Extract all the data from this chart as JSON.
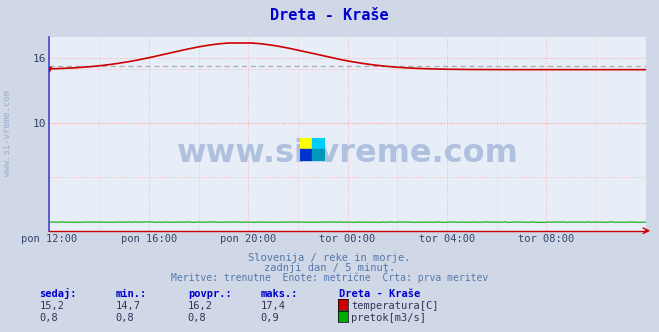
{
  "title": "Dreta - Kraše",
  "title_color": "#0000cc",
  "bg_color": "#d0d8e8",
  "plot_bg_color": "#e8eef8",
  "grid_color": "#ffaaaa",
  "spine_color_left": "#4444cc",
  "spine_color_bottom": "#cc0000",
  "x_labels": [
    "pon 12:00",
    "pon 16:00",
    "pon 20:00",
    "tor 00:00",
    "tor 04:00",
    "tor 08:00"
  ],
  "x_ticks_norm": [
    0.0,
    0.1667,
    0.3333,
    0.5,
    0.6667,
    0.8333
  ],
  "y_min": 0,
  "y_max": 18,
  "y_ticks": [
    10,
    16
  ],
  "temp_color": "#cc0000",
  "flow_color": "#00aa00",
  "avg_line_color": "#aaaaaa",
  "avg_value": 15.3,
  "watermark_text": "www.si-vreme.com",
  "watermark_color": "#aabbdd",
  "side_text": "www.si-vreme.com",
  "subtitle1": "Slovenija / reke in morje.",
  "subtitle2": "zadnji dan / 5 minut.",
  "subtitle3": "Meritve: trenutne  Enote: metrične  Črta: prva meritev",
  "subtitle_color": "#5577aa",
  "footer_label_color": "#0000cc",
  "legend_title": "Dreta - Kraše",
  "legend_title_color": "#0000cc",
  "stats_labels": [
    "sedaj:",
    "min.:",
    "povpr.:",
    "maks.:"
  ],
  "temp_stats": [
    "15,2",
    "14,7",
    "16,2",
    "17,4"
  ],
  "flow_stats": [
    "0,8",
    "0,8",
    "0,8",
    "0,9"
  ]
}
